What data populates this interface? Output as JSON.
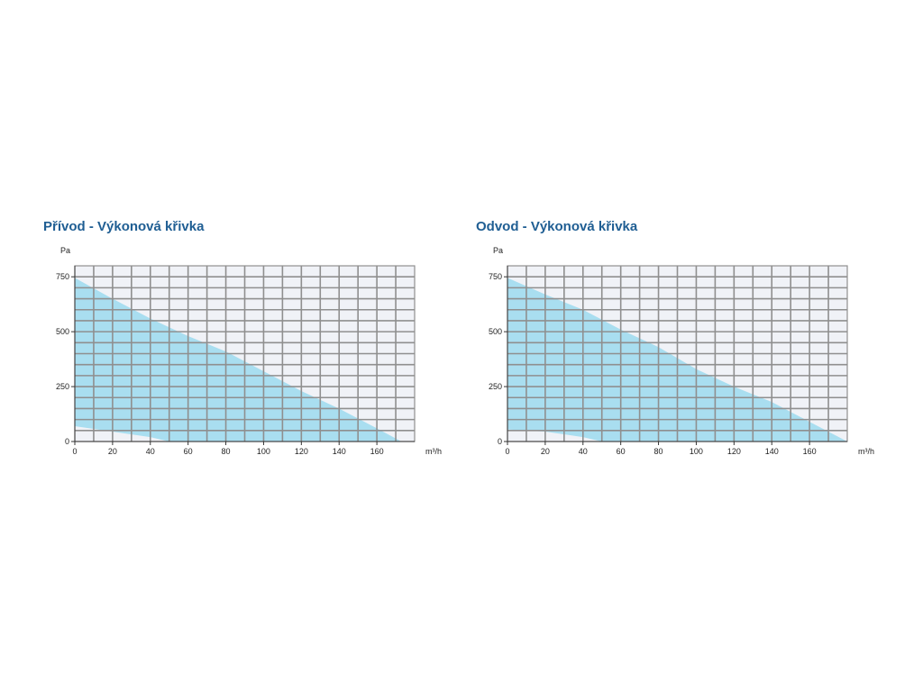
{
  "chart_data": [
    {
      "type": "area",
      "title": "Přívod - Výkonová křivka",
      "ylabel": "Pa",
      "xlabel": "m³/h",
      "xlim": [
        0,
        180
      ],
      "ylim": [
        0,
        800
      ],
      "x_ticks": [
        0,
        20,
        40,
        60,
        80,
        100,
        120,
        140,
        160
      ],
      "y_ticks": [
        0,
        250,
        500,
        750
      ],
      "grid": true,
      "fill_color": "#a9def0",
      "plot_background": "#f0f2f7",
      "grid_color": "#8f8f8f",
      "series": [
        {
          "upper": [
            {
              "x": 0,
              "y": 745
            },
            {
              "x": 20,
              "y": 650
            },
            {
              "x": 40,
              "y": 560
            },
            {
              "x": 60,
              "y": 480
            },
            {
              "x": 80,
              "y": 410
            },
            {
              "x": 100,
              "y": 320
            },
            {
              "x": 120,
              "y": 230
            },
            {
              "x": 140,
              "y": 150
            },
            {
              "x": 160,
              "y": 60
            },
            {
              "x": 173,
              "y": 0
            }
          ],
          "lower": [
            {
              "x": 0,
              "y": 70
            },
            {
              "x": 20,
              "y": 45
            },
            {
              "x": 40,
              "y": 20
            },
            {
              "x": 50,
              "y": 0
            }
          ]
        }
      ]
    },
    {
      "type": "area",
      "title": "Odvod - Výkonová křivka",
      "ylabel": "Pa",
      "xlabel": "m³/h",
      "xlim": [
        0,
        180
      ],
      "ylim": [
        0,
        800
      ],
      "x_ticks": [
        0,
        20,
        40,
        60,
        80,
        100,
        120,
        140,
        160
      ],
      "y_ticks": [
        0,
        250,
        500,
        750
      ],
      "grid": true,
      "fill_color": "#a9def0",
      "plot_background": "#f0f2f7",
      "grid_color": "#8f8f8f",
      "series": [
        {
          "upper": [
            {
              "x": 0,
              "y": 745
            },
            {
              "x": 20,
              "y": 670
            },
            {
              "x": 40,
              "y": 600
            },
            {
              "x": 60,
              "y": 510
            },
            {
              "x": 80,
              "y": 430
            },
            {
              "x": 100,
              "y": 330
            },
            {
              "x": 120,
              "y": 250
            },
            {
              "x": 140,
              "y": 180
            },
            {
              "x": 160,
              "y": 90
            },
            {
              "x": 180,
              "y": 0
            }
          ],
          "lower": [
            {
              "x": 0,
              "y": 55
            },
            {
              "x": 20,
              "y": 45
            },
            {
              "x": 40,
              "y": 20
            },
            {
              "x": 50,
              "y": 0
            }
          ]
        }
      ]
    }
  ]
}
